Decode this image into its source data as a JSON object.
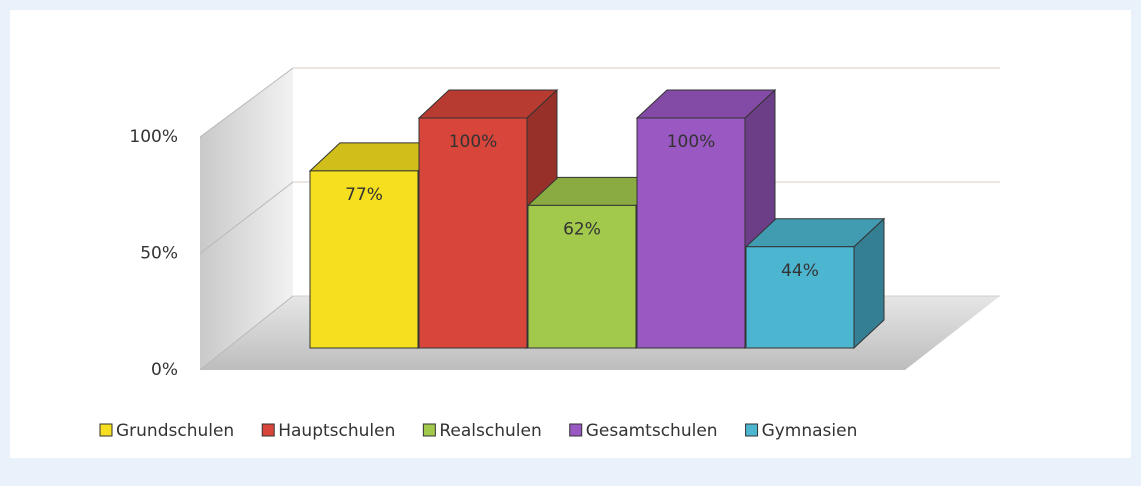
{
  "chart_data": {
    "type": "bar3d",
    "categories": [
      null
    ],
    "series": [
      {
        "name": "Grundschulen",
        "color": "#f5df1e",
        "values": [
          77
        ],
        "value_labels": [
          "77%"
        ]
      },
      {
        "name": "Hauptschulen",
        "color": "#d8453b",
        "values": [
          100
        ],
        "value_labels": [
          "100%"
        ]
      },
      {
        "name": "Realschulen",
        "color": "#a2c94c",
        "values": [
          62
        ],
        "value_labels": [
          "62%"
        ]
      },
      {
        "name": "Gesamtschulen",
        "color": "#9a58c2",
        "values": [
          100
        ],
        "value_labels": [
          "100%"
        ]
      },
      {
        "name": "Gymnasien",
        "color": "#4cb6d0",
        "values": [
          44
        ],
        "value_labels": [
          "44%"
        ]
      }
    ],
    "ylim": [
      0,
      100
    ],
    "yticks": [
      {
        "value": 0,
        "label": "0%"
      },
      {
        "value": 50,
        "label": "50%"
      },
      {
        "value": 100,
        "label": "100%"
      }
    ],
    "grid": true,
    "legend": "bottom"
  }
}
